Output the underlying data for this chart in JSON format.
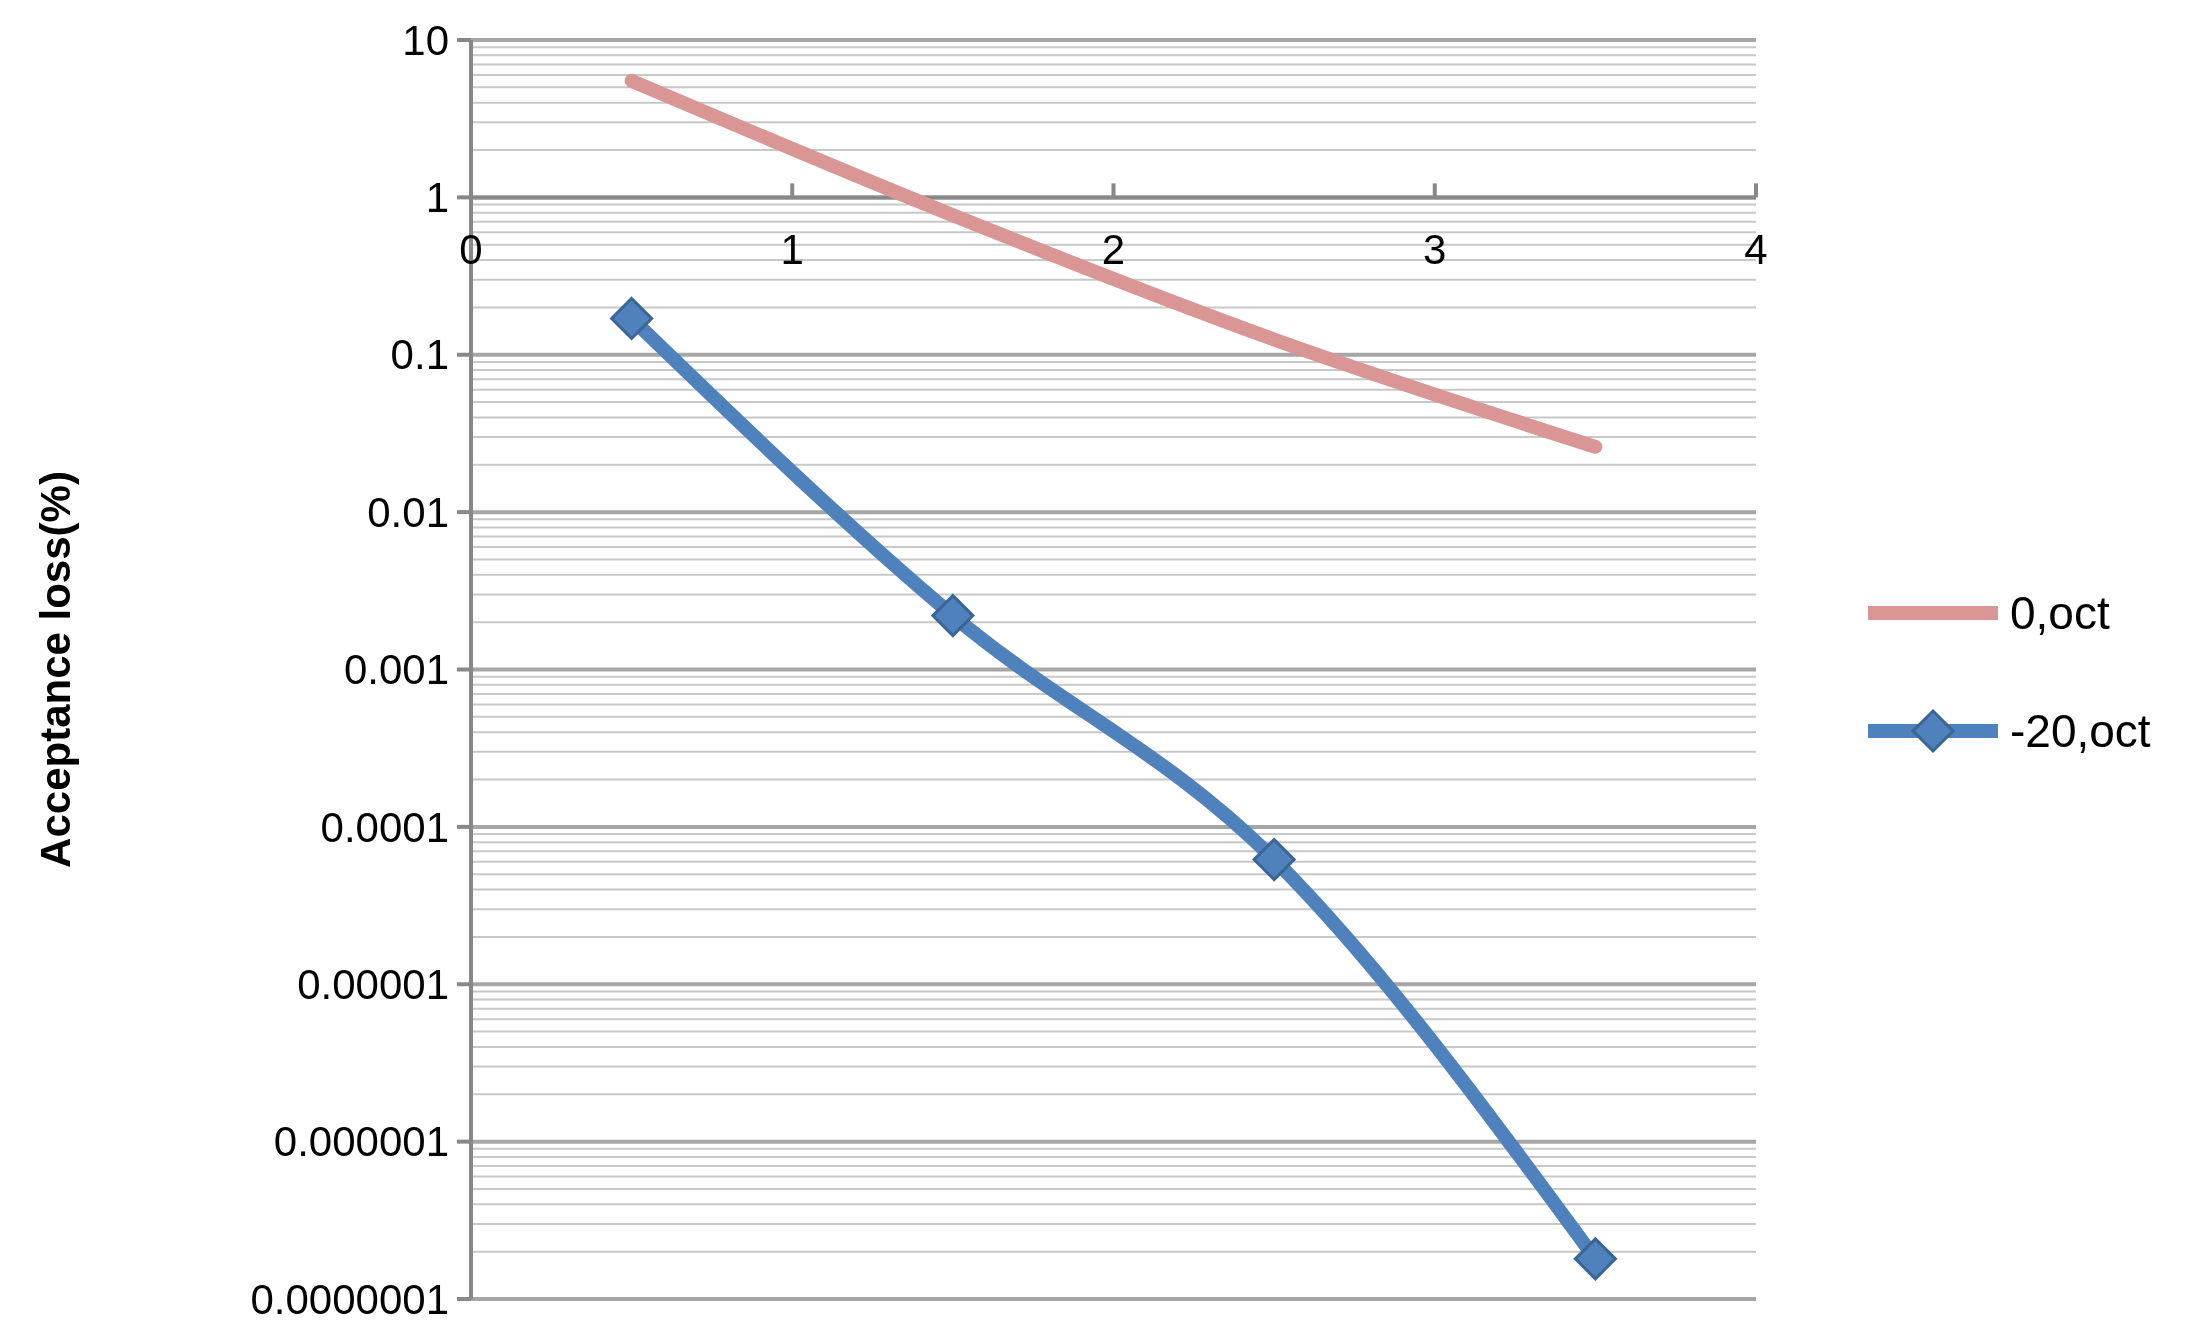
{
  "chart_data": {
    "type": "line",
    "ylabel": "Acceptance loss(%)",
    "log": "y",
    "grid": "y",
    "legend": "right",
    "x": [
      0.5,
      1.5,
      2.5,
      3.5
    ],
    "xlim": [
      0,
      4
    ],
    "xticks": [
      0,
      1,
      2,
      3,
      4
    ],
    "ylim": [
      1e-07,
      10
    ],
    "yticks": [
      {
        "value": 1e-07,
        "label": "0.0000001"
      },
      {
        "value": 1e-06,
        "label": "0.000001"
      },
      {
        "value": 1e-05,
        "label": "0.00001"
      },
      {
        "value": 0.0001,
        "label": "0.0001"
      },
      {
        "value": 0.001,
        "label": "0.001"
      },
      {
        "value": 0.01,
        "label": "0.01"
      },
      {
        "value": 0.1,
        "label": "0.1"
      },
      {
        "value": 1,
        "label": "1"
      },
      {
        "value": 10,
        "label": "10"
      }
    ],
    "series": [
      {
        "name": "0,oct",
        "color": "#d99694",
        "marker": "none",
        "values": [
          5.5,
          0.77,
          0.125,
          0.026
        ]
      },
      {
        "name": "-20,oct",
        "color": "#4f81bd",
        "marker": "diamond",
        "values": [
          0.17,
          0.0022,
          6.2e-05,
          1.8e-07
        ]
      }
    ]
  }
}
